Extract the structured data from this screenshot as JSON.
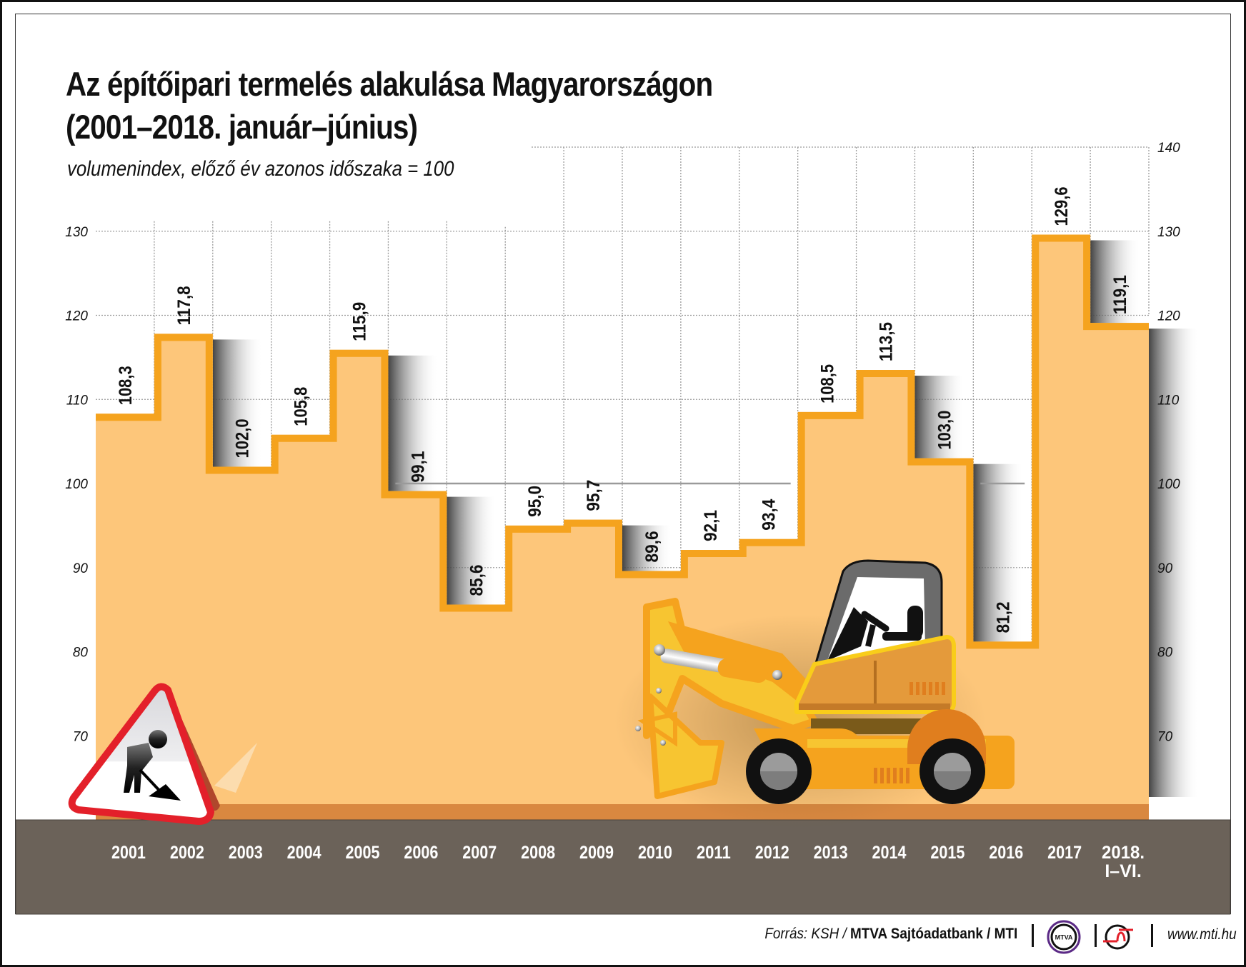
{
  "title_line1": "Az építőipari termelés alakulása Magyarországon",
  "title_line2": "(2001–2018. január–június)",
  "subtitle": "volumenindex, előző év azonos időszaka = 100",
  "colors": {
    "fill": "#fdc67a",
    "stroke": "#f5a31e",
    "ground": "#6b6259",
    "ground_stripe": "#d98840",
    "grid": "#9a9a9a",
    "reference_line": "#9a9a9a",
    "label_text": "#111111",
    "year_text": "#ffffff"
  },
  "chart_data": {
    "type": "bar",
    "subtype": "step",
    "title": "Az építőipari termelés alakulása Magyarországon (2001–2018. január–június)",
    "subtitle": "volumenindex, előző év azonos időszaka = 100",
    "xlabel": "",
    "ylabel": "volumenindex",
    "categories": [
      "2001",
      "2002",
      "2003",
      "2004",
      "2005",
      "2006",
      "2007",
      "2008",
      "2009",
      "2010",
      "2011",
      "2012",
      "2013",
      "2014",
      "2015",
      "2016",
      "2017",
      "2018. I–VI."
    ],
    "values": [
      108.3,
      117.8,
      102.0,
      105.8,
      115.9,
      99.1,
      85.6,
      95.0,
      95.7,
      89.6,
      92.1,
      93.4,
      108.5,
      113.5,
      103.0,
      81.2,
      129.6,
      119.1
    ],
    "value_labels": [
      "108,3",
      "117,8",
      "102,0",
      "105,8",
      "115,9",
      "99,1",
      "85,6",
      "95,0",
      "95,7",
      "89,6",
      "92,1",
      "93,4",
      "108,5",
      "113,5",
      "103,0",
      "81,2",
      "129,6",
      "119,1"
    ],
    "ylim": [
      60,
      140
    ],
    "yticks_left": [
      70,
      80,
      90,
      100,
      110,
      120,
      130
    ],
    "yticks_right": [
      70,
      80,
      90,
      100,
      110,
      120,
      130,
      140
    ],
    "reference_line": 100,
    "grid": true,
    "legend": null
  },
  "year_labels": [
    {
      "line1": "2001"
    },
    {
      "line1": "2002"
    },
    {
      "line1": "2003"
    },
    {
      "line1": "2004"
    },
    {
      "line1": "2005"
    },
    {
      "line1": "2006"
    },
    {
      "line1": "2007"
    },
    {
      "line1": "2008"
    },
    {
      "line1": "2009"
    },
    {
      "line1": "2010"
    },
    {
      "line1": "2011"
    },
    {
      "line1": "2012"
    },
    {
      "line1": "2013"
    },
    {
      "line1": "2014"
    },
    {
      "line1": "2015"
    },
    {
      "line1": "2016"
    },
    {
      "line1": "2017"
    },
    {
      "line1": "2018.",
      "line2": "I–VI."
    }
  ],
  "footer": {
    "source_prefix": "Forrás: KSH / ",
    "source_bold": "MTVA Sajtóadatbank / MTI",
    "logo_mtva_text": "MTVA",
    "website": "www.mti.hu"
  },
  "icons": {
    "warning_sign": "road-works-warning-sign-icon",
    "excavator": "excavator-icon",
    "mtva_logo": "mtva-logo-icon",
    "mti_logo": "mti-logo-icon"
  }
}
